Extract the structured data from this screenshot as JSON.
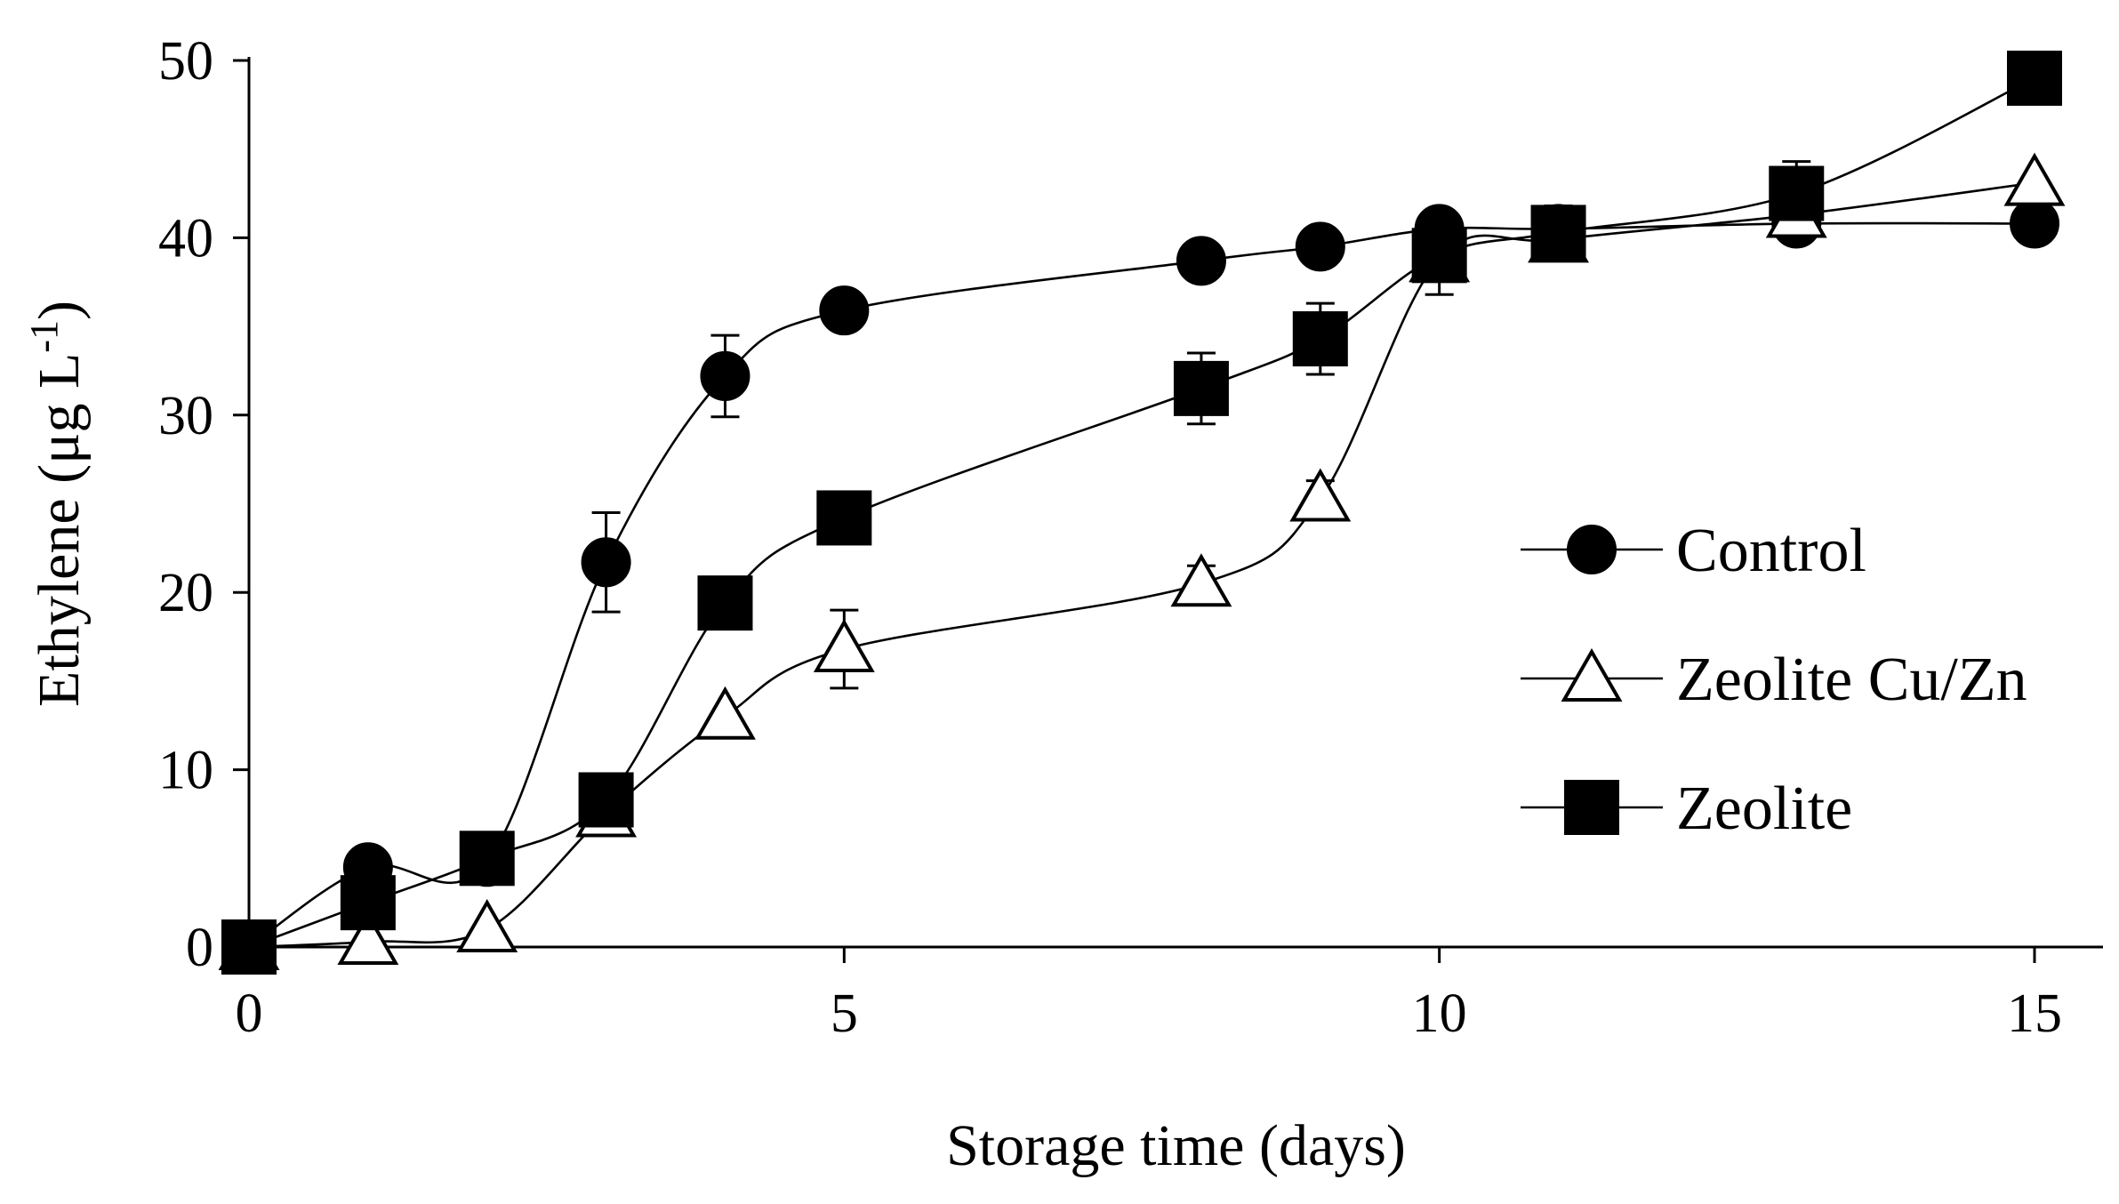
{
  "chart_data": {
    "type": "line",
    "title": "",
    "xlabel": "Storage time (days)",
    "ylabel": "Ethylene (μg L-1)",
    "ylabel_main": "Ethylene (μg L",
    "ylabel_sup": "-1",
    "ylabel_close": ")",
    "xlim": [
      0,
      15.5
    ],
    "ylim": [
      0,
      50
    ],
    "xticks": [
      0,
      5,
      10,
      15
    ],
    "yticks": [
      0,
      10,
      20,
      30,
      40,
      50
    ],
    "grid": false,
    "legend_position": "right",
    "series": [
      {
        "name": "Control",
        "marker": "circle",
        "x": [
          0,
          1,
          2,
          3,
          4,
          5,
          8,
          9,
          10,
          11,
          13,
          15
        ],
        "y": [
          0,
          4.5,
          4.8,
          21.7,
          32.2,
          35.9,
          38.7,
          39.5,
          40.5,
          40.5,
          40.8,
          40.8
        ],
        "err": [
          0,
          0,
          0,
          2.8,
          2.3,
          0,
          0,
          1.0,
          0,
          0,
          0,
          0
        ]
      },
      {
        "name": "Zeolite Cu/Zn",
        "marker": "triangle-open",
        "x": [
          0,
          1,
          2,
          3,
          4,
          5,
          8,
          9,
          10,
          11,
          13,
          15
        ],
        "y": [
          0,
          0.3,
          1.0,
          7.5,
          13.0,
          16.8,
          20.5,
          25.3,
          38.8,
          39.9,
          41.3,
          43.1
        ],
        "err": [
          0,
          0,
          0,
          0,
          0,
          2.2,
          1.0,
          1.0,
          2.0,
          1.0,
          0,
          0
        ]
      },
      {
        "name": "Zeolite",
        "marker": "square",
        "x": [
          0,
          1,
          2,
          3,
          4,
          5,
          8,
          9,
          10,
          11,
          13,
          15
        ],
        "y": [
          0,
          2.5,
          5.0,
          8.3,
          19.4,
          24.2,
          31.5,
          34.3,
          39.0,
          40.3,
          42.5,
          49.0
        ],
        "err": [
          0,
          0,
          0,
          0,
          1.0,
          0,
          2.0,
          2.0,
          1.0,
          1.5,
          1.8,
          0
        ]
      }
    ]
  }
}
